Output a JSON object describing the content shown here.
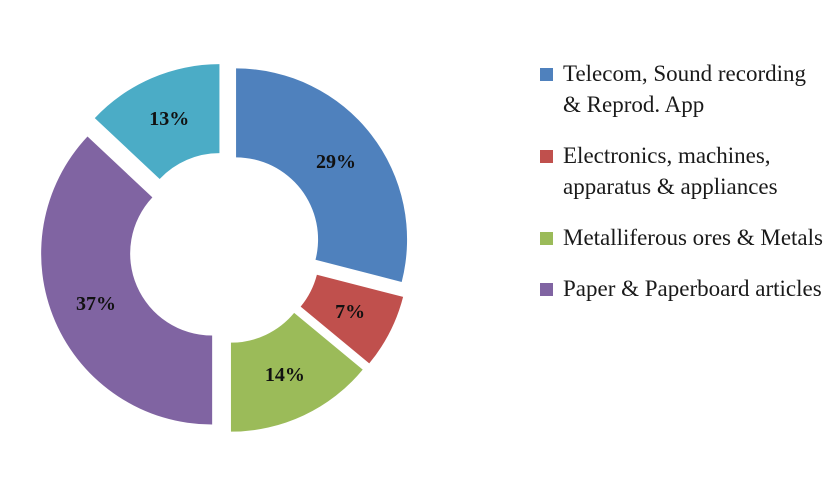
{
  "chart_data": {
    "type": "pie",
    "variant": "donut-exploded",
    "categories": [
      "Telecom, Sound recording & Reprod. App",
      "Electronics, machines, apparatus & appliances",
      "Metalliferous ores & Metals",
      "Paper & Paperboard articles",
      ""
    ],
    "values": [
      29,
      7,
      14,
      37,
      13
    ],
    "value_labels": [
      "29%",
      "7%",
      "14%",
      "37%",
      "13%"
    ],
    "colors": [
      "#4F81BD",
      "#C0504D",
      "#9BBB59",
      "#8064A2",
      "#4BACC6"
    ],
    "legend_position": "right"
  },
  "legend": {
    "items": [
      {
        "label": "Telecom, Sound recording & Reprod. App",
        "color": "#4F81BD"
      },
      {
        "label": "Electronics, machines, apparatus & appliances",
        "color": "#C0504D"
      },
      {
        "label": "Metalliferous ores & Metals",
        "color": "#9BBB59"
      },
      {
        "label": "Paper & Paperboard articles",
        "color": "#8064A2"
      }
    ]
  }
}
